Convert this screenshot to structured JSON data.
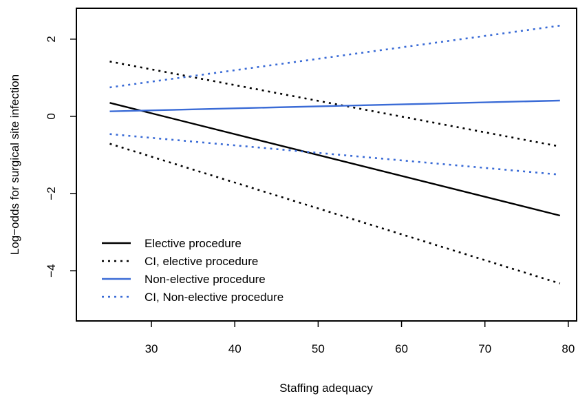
{
  "chart_data": {
    "type": "line",
    "title": "",
    "xlabel": "Staffing adequacy",
    "ylabel": "Log−odds for surgical site infection",
    "xlim": [
      21,
      81
    ],
    "ylim": [
      -5.3,
      2.8
    ],
    "xticks": [
      30,
      40,
      50,
      60,
      70,
      80
    ],
    "yticks": [
      -4,
      -2,
      0,
      2
    ],
    "xtick_labels": [
      "30",
      "40",
      "50",
      "60",
      "70",
      "80"
    ],
    "ytick_labels": [
      "−4",
      "−2",
      "0",
      "2"
    ],
    "legend_position": "bottom-left",
    "grid": false,
    "series": [
      {
        "name": "Elective procedure",
        "color": "#000000",
        "style": "solid",
        "x": [
          25,
          79
        ],
        "y": [
          0.35,
          -2.57
        ]
      },
      {
        "name": "CI, elective procedure",
        "color": "#000000",
        "style": "dotted",
        "x": [
          25,
          79
        ],
        "y": [
          1.42,
          -0.78
        ]
      },
      {
        "name": "CI, elective procedure",
        "color": "#000000",
        "style": "dotted",
        "x": [
          25,
          79
        ],
        "y": [
          -0.71,
          -4.33
        ],
        "in_legend": false
      },
      {
        "name": "Non-elective procedure",
        "color": "#3a6bd6",
        "style": "solid",
        "x": [
          25,
          79
        ],
        "y": [
          0.13,
          0.41
        ]
      },
      {
        "name": "CI, Non-elective procedure",
        "color": "#3a6bd6",
        "style": "dotted",
        "x": [
          25,
          79
        ],
        "y": [
          0.75,
          2.35
        ]
      },
      {
        "name": "CI, Non-elective procedure",
        "color": "#3a6bd6",
        "style": "dotted",
        "x": [
          25,
          79
        ],
        "y": [
          -0.46,
          -1.51
        ],
        "in_legend": false
      }
    ],
    "legend": [
      {
        "label": "Elective procedure",
        "color": "#000000",
        "style": "solid"
      },
      {
        "label": "CI, elective procedure",
        "color": "#000000",
        "style": "dotted"
      },
      {
        "label": "Non-elective procedure",
        "color": "#3a6bd6",
        "style": "solid"
      },
      {
        "label": "CI, Non-elective procedure",
        "color": "#3a6bd6",
        "style": "dotted"
      }
    ]
  }
}
